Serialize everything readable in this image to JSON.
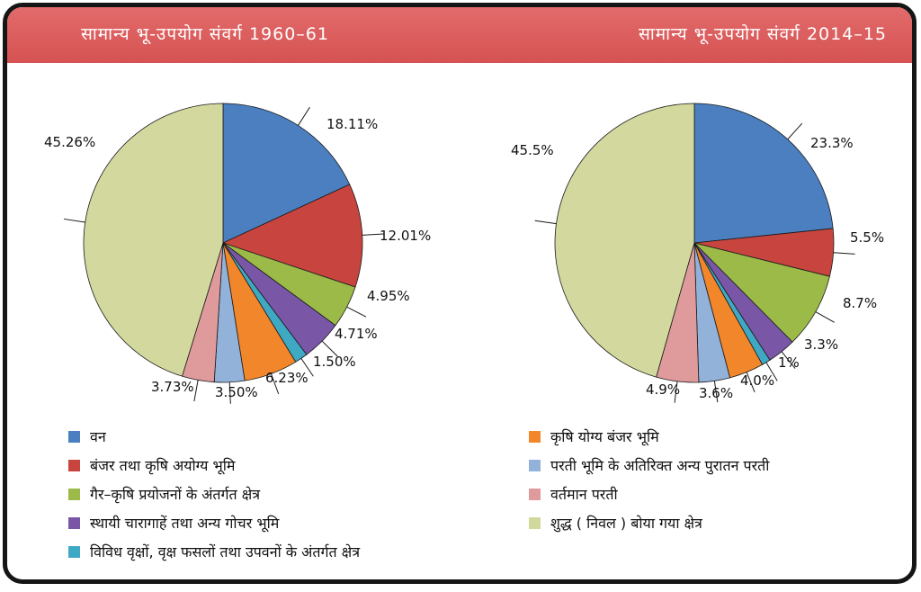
{
  "header": {
    "left_title": "सामान्य भू-उपयोग संवर्ग 1960–61",
    "right_title": "सामान्य भू-उपयोग संवर्ग 2014–15",
    "background_color": "#d95757"
  },
  "colors": [
    "#4b7fbf",
    "#c8453f",
    "#9bba48",
    "#7a56a6",
    "#3fa9c4",
    "#f1862a",
    "#92b2d9",
    "#df9b9b",
    "#d3d99e"
  ],
  "chart_data": [
    {
      "type": "pie",
      "title": "सामान्य भू-उपयोग संवर्ग 1960–61",
      "labels": [
        "18.11%",
        "12.01%",
        "4.95%",
        "4.71%",
        "1.50%",
        "6.23%",
        "3.50%",
        "3.73%",
        "45.26%"
      ],
      "values": [
        18.11,
        12.01,
        4.95,
        4.71,
        1.5,
        6.23,
        3.5,
        3.73,
        45.26
      ],
      "start_angle": "12 o'clock",
      "direction": "clockwise"
    },
    {
      "type": "pie",
      "title": "सामान्य भू-उपयोग संवर्ग 2014–15",
      "labels": [
        "23.3%",
        "5.5%",
        "8.7%",
        "3.3%",
        "1%",
        "4.0%",
        "3.6%",
        "4.9%",
        "45.5%"
      ],
      "values": [
        23.3,
        5.5,
        8.7,
        3.3,
        1.0,
        4.0,
        3.6,
        4.9,
        45.5
      ],
      "start_angle": "12 o'clock",
      "direction": "clockwise"
    }
  ],
  "legend": {
    "left": [
      {
        "label": "वन",
        "color": "#4b7fbf"
      },
      {
        "label": "बंजर तथा कृषि अयोग्य भूमि",
        "color": "#c8453f"
      },
      {
        "label": "गैर–कृषि प्रयोजनों के अंतर्गत क्षेत्र",
        "color": "#9bba48"
      },
      {
        "label": "स्थायी चारागाहें तथा अन्य गोचर भूमि",
        "color": "#7a56a6"
      },
      {
        "label": "विविध वृक्षों, वृक्ष फसलों तथा उपवनों के अंतर्गत क्षेत्र",
        "color": "#3fa9c4"
      }
    ],
    "right": [
      {
        "label": "कृषि योग्य बंजर भूमि",
        "color": "#f1862a"
      },
      {
        "label": "परती भूमि के अतिरिक्त अन्य पुरातन परती",
        "color": "#92b2d9"
      },
      {
        "label": "वर्तमान परती",
        "color": "#df9b9b"
      },
      {
        "label": "शुद्ध ( निवल ) बोया गया क्षेत्र",
        "color": "#d3d99e"
      }
    ]
  }
}
